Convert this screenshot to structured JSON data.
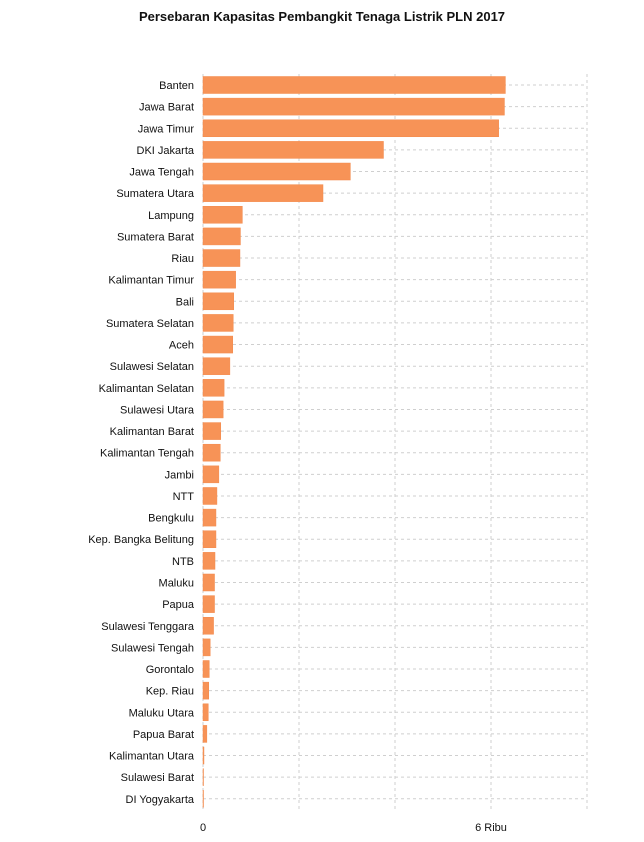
{
  "chart_data": {
    "type": "bar",
    "orientation": "horizontal",
    "title": "Persebaran Kapasitas Pembangkit Tenaga Listrik PLN 2017",
    "xlabel": "",
    "ylabel": "",
    "xlim": [
      0,
      8000
    ],
    "x_ticks": [
      {
        "value": 0,
        "label": "0"
      },
      {
        "value": 6000,
        "label": "6 Ribu"
      }
    ],
    "grid": true,
    "bar_color": "#f79357",
    "categories": [
      "Banten",
      "Jawa Barat",
      "Jawa Timur",
      "DKI Jakarta",
      "Jawa Tengah",
      "Sumatera Utara",
      "Lampung",
      "Sumatera Barat",
      "Riau",
      "Kalimantan Timur",
      "Bali",
      "Sumatera Selatan",
      "Aceh",
      "Sulawesi Selatan",
      "Kalimantan Selatan",
      "Sulawesi Utara",
      "Kalimantan Barat",
      "Kalimantan Tengah",
      "Jambi",
      "NTT",
      "Bengkulu",
      "Kep. Bangka Belitung",
      "NTB",
      "Maluku",
      "Papua",
      "Sulawesi Tenggara",
      "Sulawesi Tengah",
      "Gorontalo",
      "Kep. Riau",
      "Maluku Utara",
      "Papua Barat",
      "Kalimantan Utara",
      "Sulawesi Barat",
      "DI Yogyakarta"
    ],
    "values": [
      6300,
      6280,
      6160,
      3760,
      3070,
      2500,
      820,
      780,
      770,
      680,
      640,
      630,
      620,
      560,
      440,
      420,
      370,
      360,
      330,
      290,
      270,
      270,
      250,
      240,
      240,
      220,
      150,
      130,
      120,
      110,
      80,
      20,
      5,
      5
    ]
  }
}
